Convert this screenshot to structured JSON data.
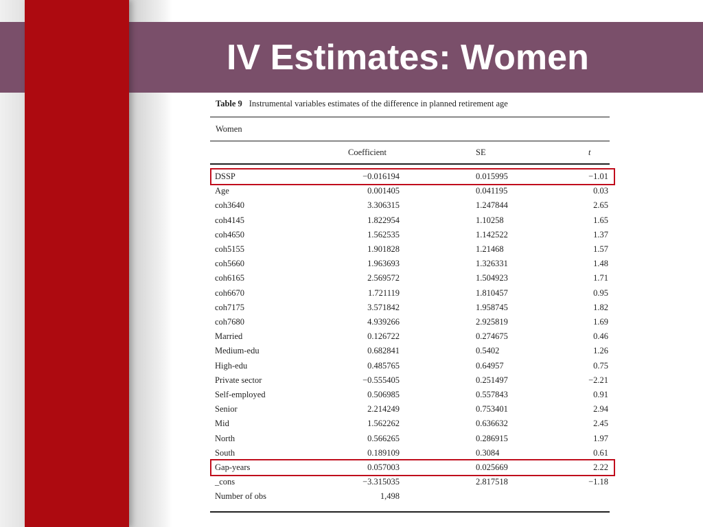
{
  "slide": {
    "title": "IV Estimates: Women"
  },
  "table": {
    "caption_label": "Table 9",
    "caption_text": "Instrumental variables estimates of the difference in planned retirement age",
    "group_label": "Women",
    "columns": [
      "Coefficient",
      "SE",
      "t"
    ],
    "rows": [
      {
        "name": "DSSP",
        "coef": "−0.016194",
        "se": "0.015995",
        "t": "−1.01",
        "highlighted": true
      },
      {
        "name": "Age",
        "coef": "0.001405",
        "se": "0.041195",
        "t": "0.03"
      },
      {
        "name": "coh3640",
        "coef": "3.306315",
        "se": "1.247844",
        "t": "2.65"
      },
      {
        "name": "coh4145",
        "coef": "1.822954",
        "se": "1.10258",
        "t": "1.65"
      },
      {
        "name": "coh4650",
        "coef": "1.562535",
        "se": "1.142522",
        "t": "1.37"
      },
      {
        "name": "coh5155",
        "coef": "1.901828",
        "se": "1.21468",
        "t": "1.57"
      },
      {
        "name": "coh5660",
        "coef": "1.963693",
        "se": "1.326331",
        "t": "1.48"
      },
      {
        "name": "coh6165",
        "coef": "2.569572",
        "se": "1.504923",
        "t": "1.71"
      },
      {
        "name": "coh6670",
        "coef": "1.721119",
        "se": "1.810457",
        "t": "0.95"
      },
      {
        "name": "coh7175",
        "coef": "3.571842",
        "se": "1.958745",
        "t": "1.82"
      },
      {
        "name": "coh7680",
        "coef": "4.939266",
        "se": "2.925819",
        "t": "1.69"
      },
      {
        "name": "Married",
        "coef": "0.126722",
        "se": "0.274675",
        "t": "0.46"
      },
      {
        "name": "Medium-edu",
        "coef": "0.682841",
        "se": "0.5402",
        "t": "1.26"
      },
      {
        "name": "High-edu",
        "coef": "0.485765",
        "se": "0.64957",
        "t": "0.75"
      },
      {
        "name": "Private sector",
        "coef": "−0.555405",
        "se": "0.251497",
        "t": "−2.21"
      },
      {
        "name": "Self-employed",
        "coef": "0.506985",
        "se": "0.557843",
        "t": "0.91"
      },
      {
        "name": "Senior",
        "coef": "2.214249",
        "se": "0.753401",
        "t": "2.94"
      },
      {
        "name": "Mid",
        "coef": "1.562262",
        "se": "0.636632",
        "t": "2.45"
      },
      {
        "name": "North",
        "coef": "0.566265",
        "se": "0.286915",
        "t": "1.97"
      },
      {
        "name": "South",
        "coef": "0.189109",
        "se": "0.3084",
        "t": "0.61"
      },
      {
        "name": "Gap-years",
        "coef": "0.057003",
        "se": "0.025669",
        "t": "2.22",
        "highlighted": true
      },
      {
        "name": "_cons",
        "coef": "−3.315035",
        "se": "2.817518",
        "t": "−1.18"
      },
      {
        "name": "Number of obs",
        "coef": "1,498",
        "se": "",
        "t": ""
      }
    ]
  },
  "colors": {
    "title_bar": "#7a4f6a",
    "accent_red": "#ad0a10",
    "highlight_box": "#c00d1c"
  }
}
